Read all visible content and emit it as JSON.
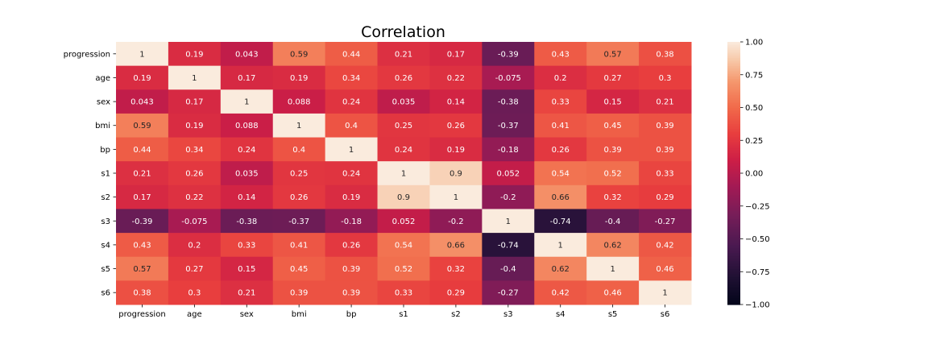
{
  "chart_data": {
    "type": "heatmap",
    "title": "Correlation",
    "xlabel": "",
    "ylabel": "",
    "x_categories": [
      "progression",
      "age",
      "sex",
      "bmi",
      "bp",
      "s1",
      "s2",
      "s3",
      "s4",
      "s5",
      "s6"
    ],
    "y_categories": [
      "progression",
      "age",
      "sex",
      "bmi",
      "bp",
      "s1",
      "s2",
      "s3",
      "s4",
      "s5",
      "s6"
    ],
    "matrix": [
      [
        1,
        0.19,
        0.043,
        0.59,
        0.44,
        0.21,
        0.17,
        -0.39,
        0.43,
        0.57,
        0.38
      ],
      [
        0.19,
        1,
        0.17,
        0.19,
        0.34,
        0.26,
        0.22,
        -0.075,
        0.2,
        0.27,
        0.3
      ],
      [
        0.043,
        0.17,
        1,
        0.088,
        0.24,
        0.035,
        0.14,
        -0.38,
        0.33,
        0.15,
        0.21
      ],
      [
        0.59,
        0.19,
        0.088,
        1,
        0.4,
        0.25,
        0.26,
        -0.37,
        0.41,
        0.45,
        0.39
      ],
      [
        0.44,
        0.34,
        0.24,
        0.4,
        1,
        0.24,
        0.19,
        -0.18,
        0.26,
        0.39,
        0.39
      ],
      [
        0.21,
        0.26,
        0.035,
        0.25,
        0.24,
        1,
        0.9,
        0.052,
        0.54,
        0.52,
        0.33
      ],
      [
        0.17,
        0.22,
        0.14,
        0.26,
        0.19,
        0.9,
        1,
        -0.2,
        0.66,
        0.32,
        0.29
      ],
      [
        -0.39,
        -0.075,
        -0.38,
        -0.37,
        -0.18,
        0.052,
        -0.2,
        1,
        -0.74,
        -0.4,
        -0.27
      ],
      [
        0.43,
        0.2,
        0.33,
        0.41,
        0.26,
        0.54,
        0.66,
        -0.74,
        1,
        0.62,
        0.42
      ],
      [
        0.57,
        0.27,
        0.15,
        0.45,
        0.39,
        0.52,
        0.32,
        -0.4,
        0.62,
        1,
        0.46
      ],
      [
        0.38,
        0.3,
        0.21,
        0.39,
        0.39,
        0.33,
        0.29,
        -0.27,
        0.42,
        0.46,
        1
      ]
    ],
    "colorbar": {
      "range": [
        -1.0,
        1.0
      ],
      "ticks": [
        -1.0,
        -0.75,
        -0.5,
        -0.25,
        0.0,
        0.25,
        0.5,
        0.75,
        1.0
      ],
      "tick_labels": [
        "−1.00",
        "−0.75",
        "−0.50",
        "−0.25",
        "0.00",
        "0.25",
        "0.50",
        "0.75",
        "1.00"
      ],
      "colormap": "rocket"
    },
    "annotated": true,
    "grid": false
  }
}
